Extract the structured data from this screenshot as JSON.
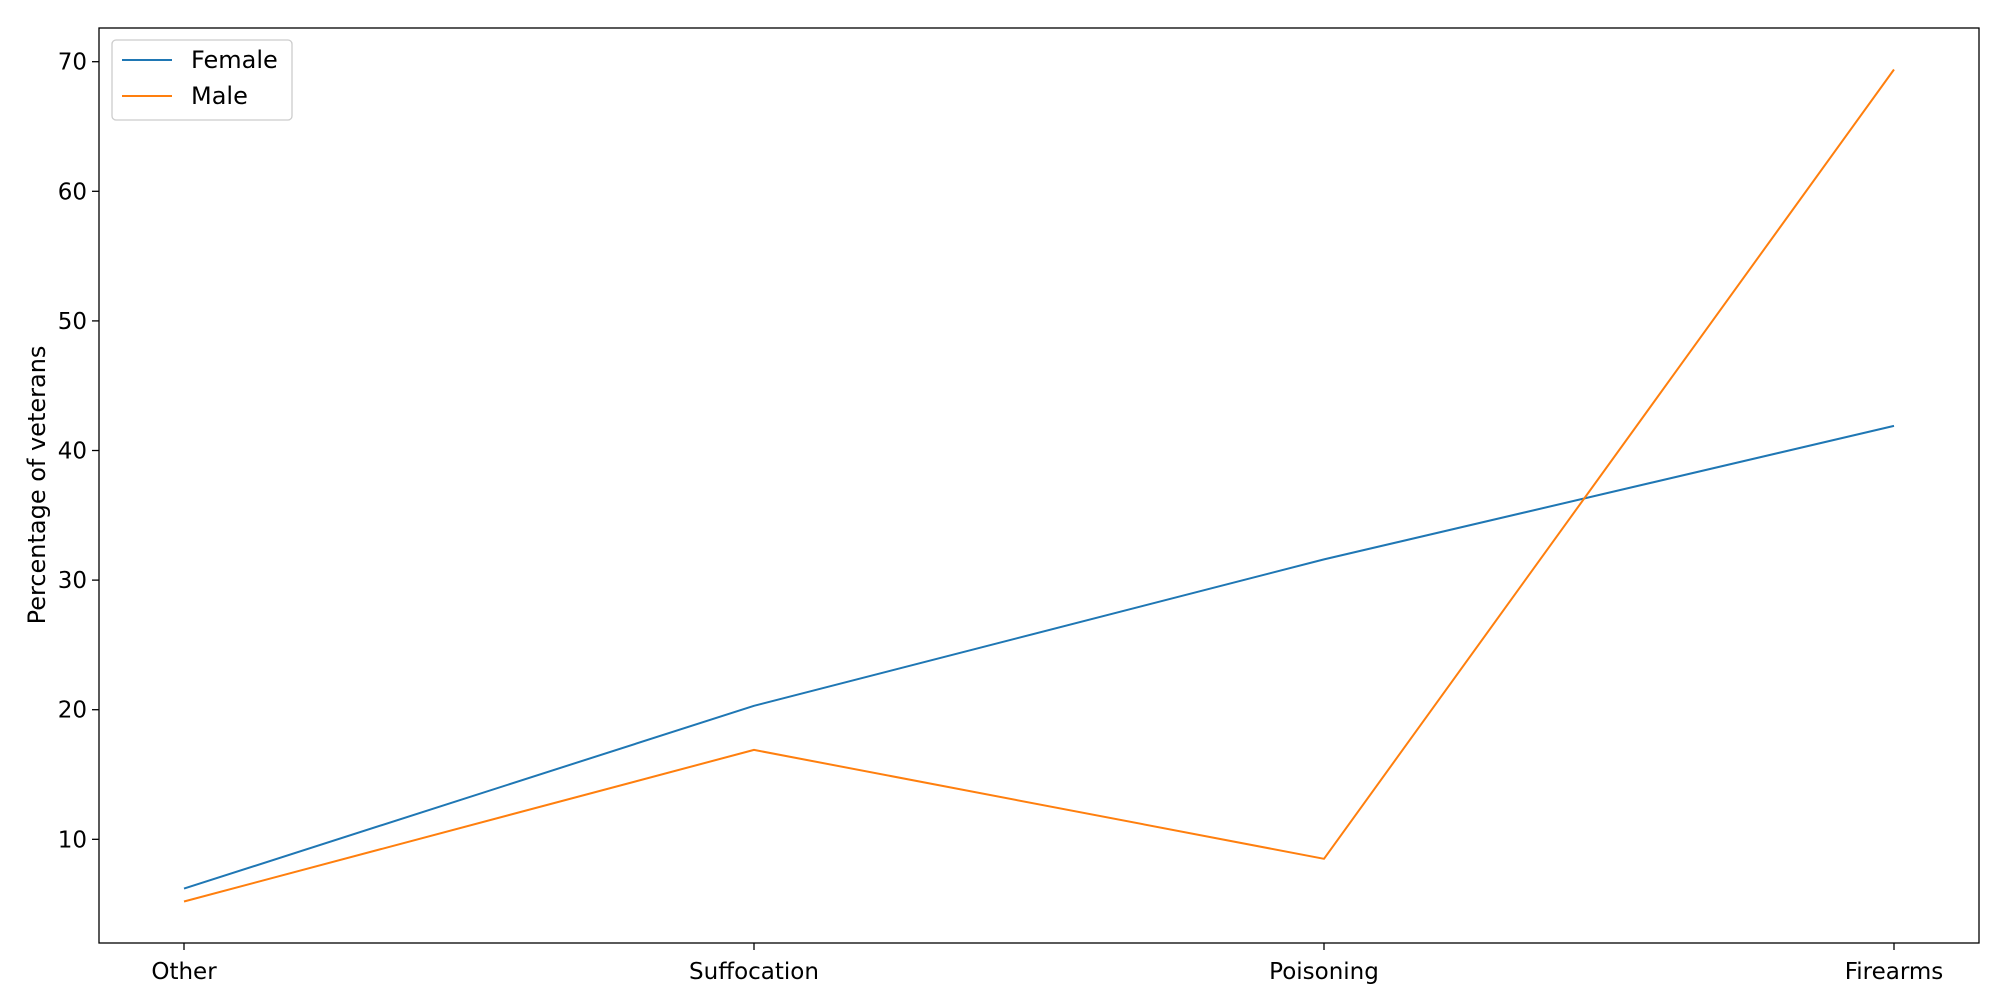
{
  "chart_data": {
    "type": "line",
    "categories": [
      "Other",
      "Suffocation",
      "Poisoning",
      "Firearms"
    ],
    "series": [
      {
        "name": "Female",
        "color": "#1f77b4",
        "values": [
          6.2,
          20.3,
          31.6,
          41.9
        ]
      },
      {
        "name": "Male",
        "color": "#ff7f0e",
        "values": [
          5.2,
          16.9,
          8.5,
          69.4
        ]
      }
    ],
    "title": "",
    "xlabel": "",
    "ylabel": "Percentage of veterans",
    "ylim": [
      2.0,
      72.6
    ],
    "yticks": [
      10,
      20,
      30,
      40,
      50,
      60,
      70
    ],
    "grid": false,
    "legend_position": "top-left"
  }
}
